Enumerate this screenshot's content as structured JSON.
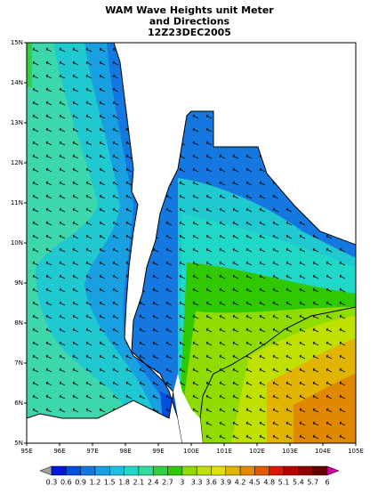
{
  "title": [
    "WAM Wave Heights unit Meter",
    "and Directions",
    "12Z23DEC2005"
  ],
  "map": {
    "lon_ticks": [
      "95E",
      "96E",
      "97E",
      "98E",
      "99E",
      "100E",
      "101E",
      "102E",
      "103E",
      "104E",
      "105E"
    ],
    "lat_ticks": [
      "5N",
      "6N",
      "7N",
      "8N",
      "9N",
      "10N",
      "11N",
      "12N",
      "13N",
      "14N",
      "15N"
    ]
  },
  "colorbar": {
    "labels": [
      "0.3",
      "0.6",
      "0.9",
      "1.2",
      "1.5",
      "1.8",
      "2.1",
      "2.4",
      "2.7",
      "3",
      "3.3",
      "3.6",
      "3.9",
      "4.2",
      "4.5",
      "4.8",
      "5.1",
      "5.4",
      "5.7",
      "6"
    ],
    "colors": [
      "#a0a0a0",
      "#0018d8",
      "#0050e0",
      "#1478e0",
      "#18a0e0",
      "#1cc0e0",
      "#20d8c8",
      "#30dca0",
      "#30d040",
      "#30c800",
      "#90dc00",
      "#c0e000",
      "#e0e000",
      "#e0b400",
      "#e08800",
      "#e05a00",
      "#d81800",
      "#b80000",
      "#900000",
      "#640000",
      "#d000a0"
    ]
  }
}
